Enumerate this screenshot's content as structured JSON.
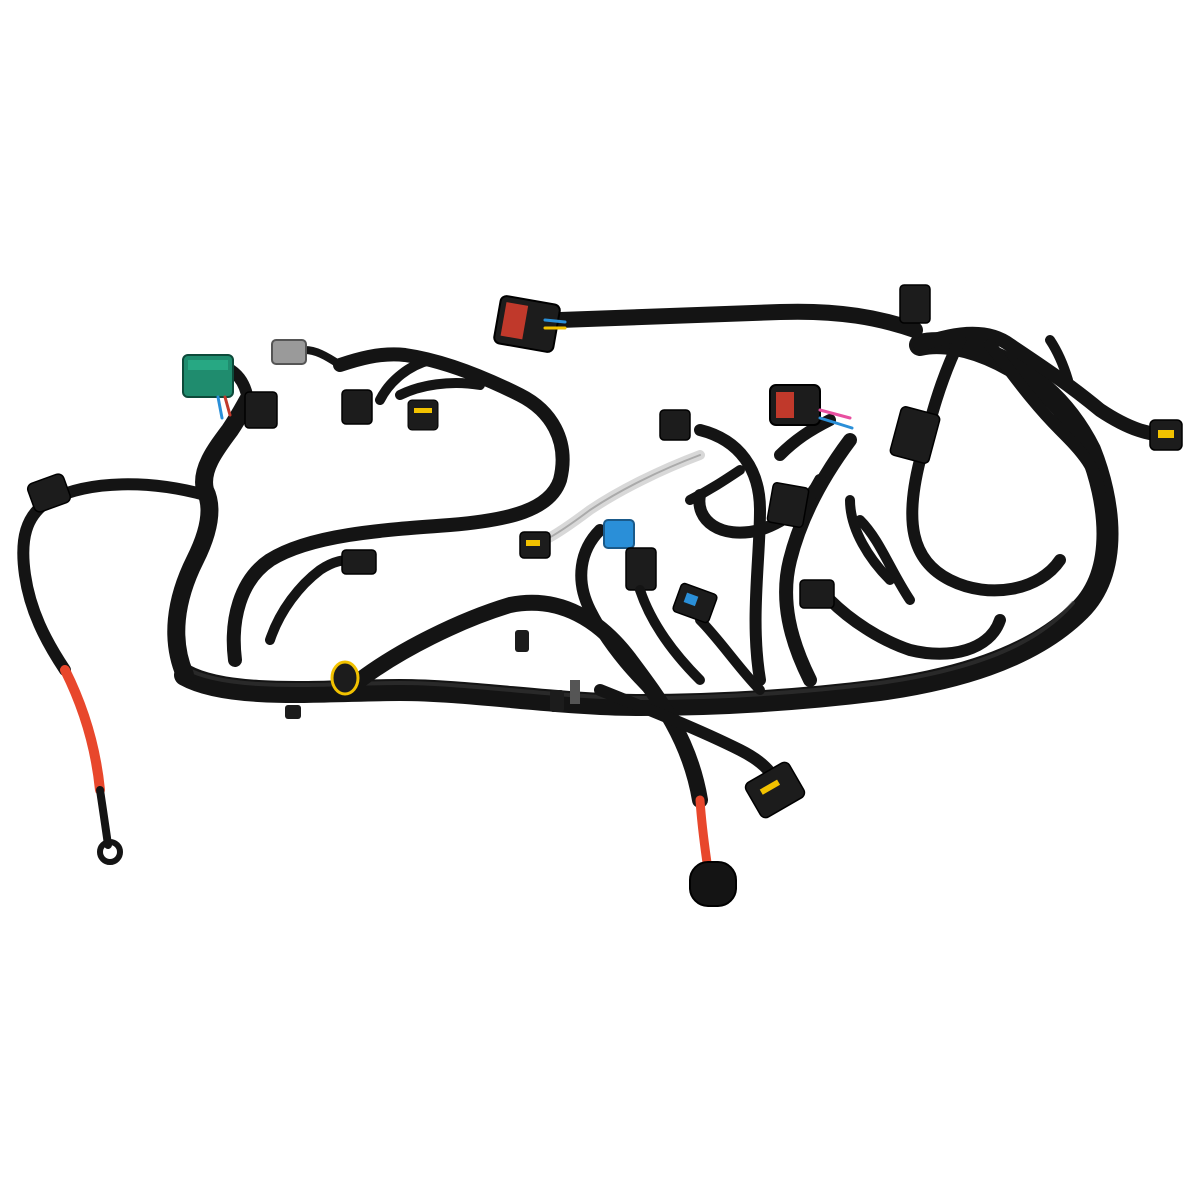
{
  "image": {
    "background_color": "#ffffff",
    "colors": {
      "loom": "#141414",
      "loom_highlight": "#3a3a3a",
      "battery_cable": "#e8472c",
      "green_connector": "#1f8c6e",
      "blue_connector": "#2a8fd8",
      "red_connector": "#c0392b",
      "yellow_clip": "#f2c200",
      "grey_connector": "#9a9a9a",
      "silver_wrap": "#d8d8d8"
    }
  }
}
